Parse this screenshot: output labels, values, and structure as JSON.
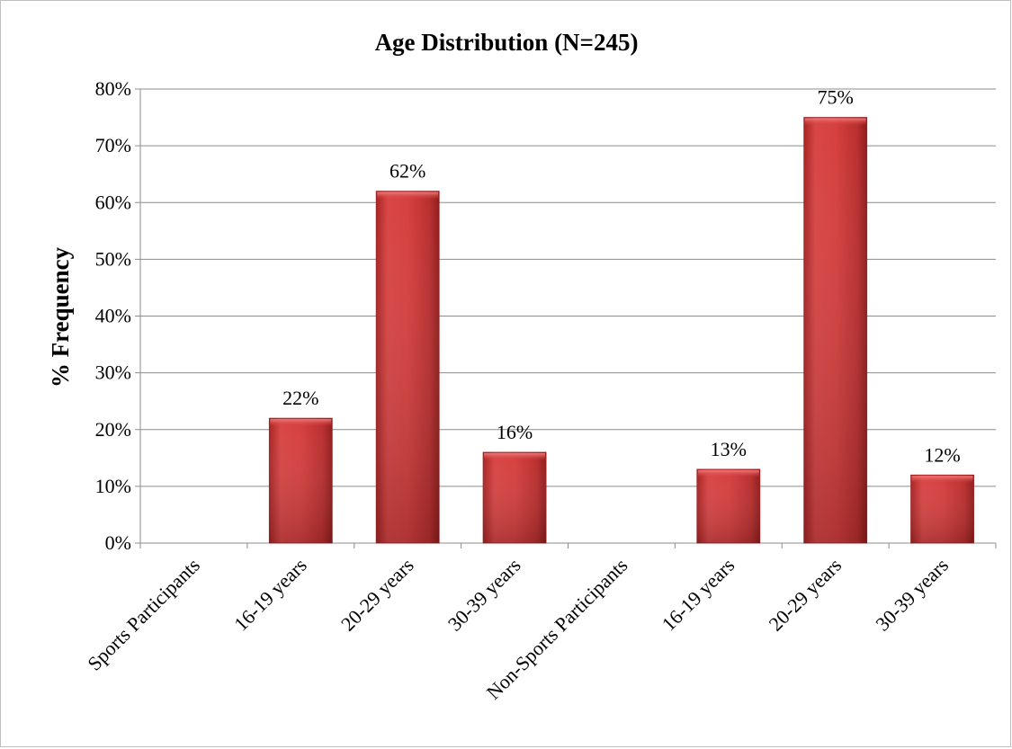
{
  "chart_data": {
    "type": "bar",
    "title": "Age Distribution (N=245)",
    "xlabel": "",
    "ylabel": "% Frequency",
    "ylim": [
      0,
      80
    ],
    "yticks": [
      0,
      10,
      20,
      30,
      40,
      50,
      60,
      70,
      80
    ],
    "ytick_labels": [
      "0%",
      "10%",
      "20%",
      "30%",
      "40%",
      "50%",
      "60%",
      "70%",
      "80%"
    ],
    "grid": true,
    "legend": "none",
    "bar_color": "#c0392b",
    "categories": [
      "Sports Participants",
      "16-19 years",
      "20-29 years",
      "30-39 years",
      "Non-Sports Participants",
      "16-19 years",
      "20-29 years",
      "30-39 years"
    ],
    "values": [
      null,
      22,
      62,
      16,
      null,
      13,
      75,
      12
    ],
    "data_labels": [
      "",
      "22%",
      "62%",
      "16%",
      "",
      "13%",
      "75%",
      "12%"
    ]
  }
}
